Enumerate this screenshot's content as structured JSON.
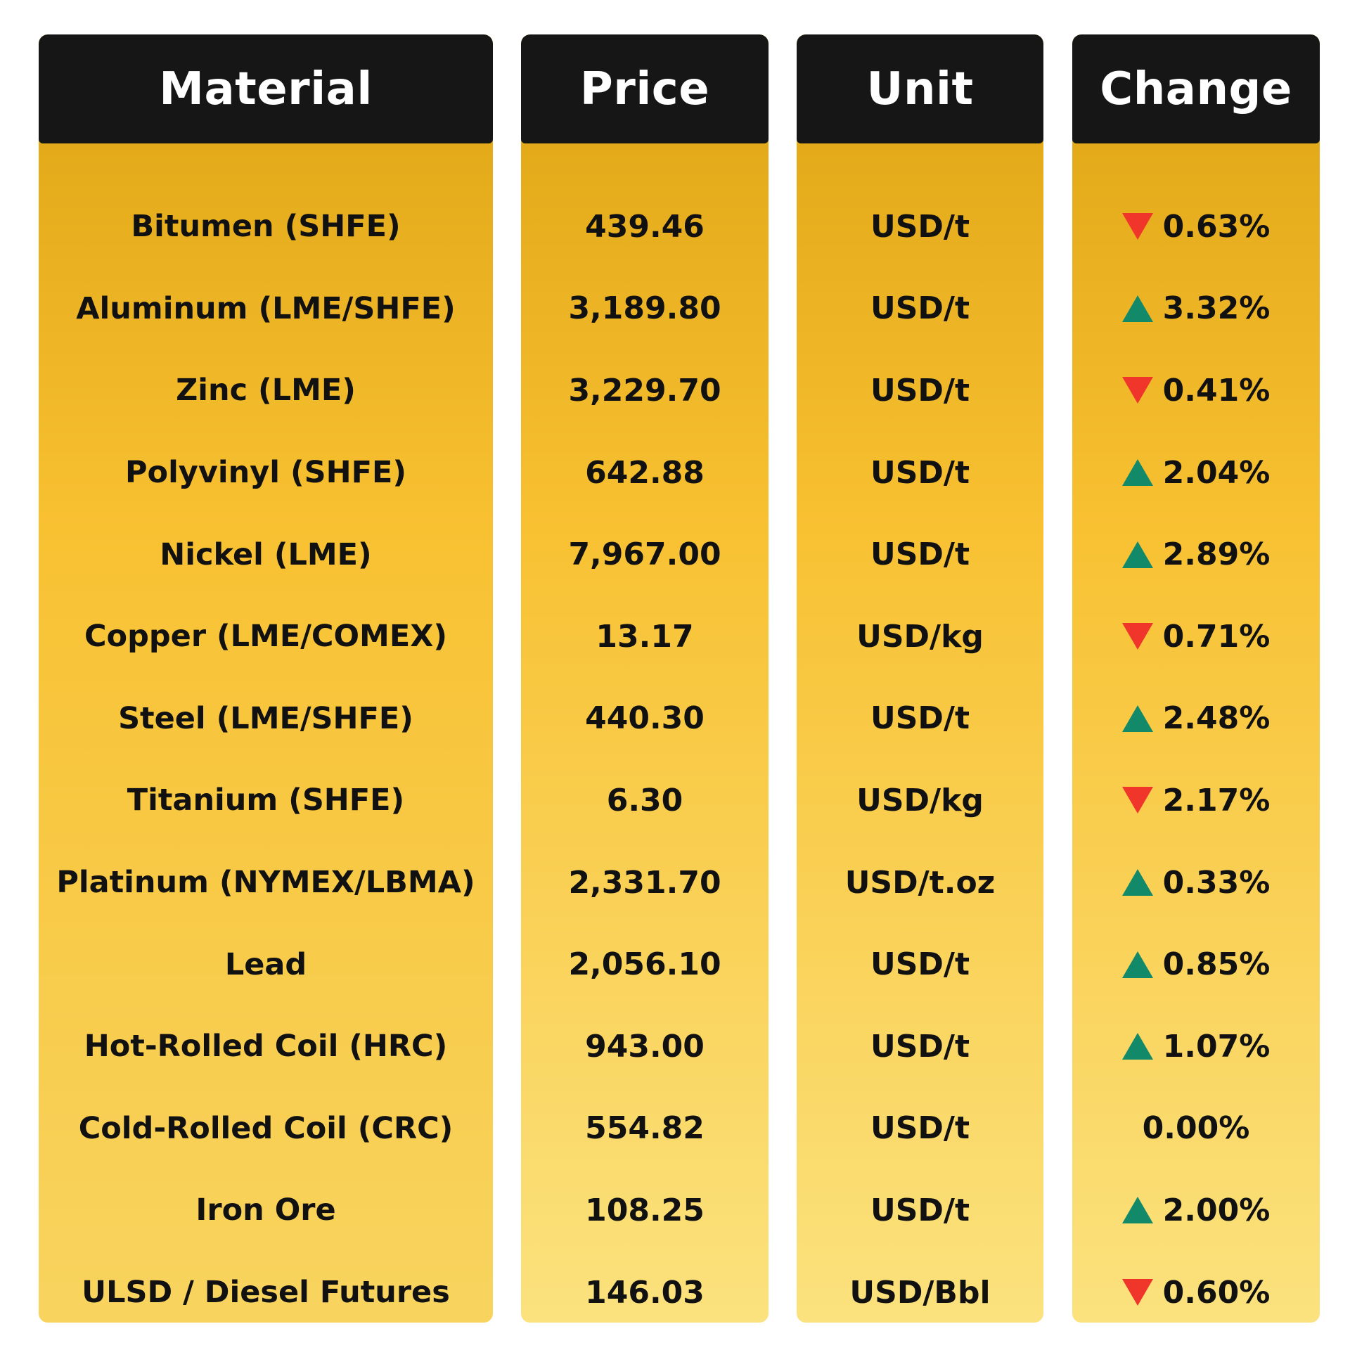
{
  "colors": {
    "header_bg": "#161616",
    "up": "#128a6a",
    "down": "#f0352b",
    "gradient_top": "#e3aa1a",
    "gradient_bottom": "#fbe27e"
  },
  "headers": {
    "material": "Material",
    "price": "Price",
    "unit": "Unit",
    "change": "Change"
  },
  "rows": [
    {
      "material": "Bitumen (SHFE)",
      "price": "439.46",
      "unit": "USD/t",
      "change": "0.63%",
      "direction": "down"
    },
    {
      "material": "Aluminum (LME/SHFE)",
      "price": "3,189.80",
      "unit": "USD/t",
      "change": "3.32%",
      "direction": "up"
    },
    {
      "material": "Zinc (LME)",
      "price": "3,229.70",
      "unit": "USD/t",
      "change": "0.41%",
      "direction": "down"
    },
    {
      "material": "Polyvinyl (SHFE)",
      "price": "642.88",
      "unit": "USD/t",
      "change": "2.04%",
      "direction": "up"
    },
    {
      "material": "Nickel (LME)",
      "price": "7,967.00",
      "unit": "USD/t",
      "change": "2.89%",
      "direction": "up"
    },
    {
      "material": "Copper (LME/COMEX)",
      "price": "13.17",
      "unit": "USD/kg",
      "change": "0.71%",
      "direction": "down"
    },
    {
      "material": "Steel (LME/SHFE)",
      "price": "440.30",
      "unit": "USD/t",
      "change": "2.48%",
      "direction": "up"
    },
    {
      "material": "Titanium (SHFE)",
      "price": "6.30",
      "unit": "USD/kg",
      "change": "2.17%",
      "direction": "down"
    },
    {
      "material": "Platinum (NYMEX/LBMA)",
      "price": "2,331.70",
      "unit": "USD/t.oz",
      "change": "0.33%",
      "direction": "up"
    },
    {
      "material": "Lead",
      "price": "2,056.10",
      "unit": "USD/t",
      "change": "0.85%",
      "direction": "up"
    },
    {
      "material": "Hot-Rolled Coil (HRC)",
      "price": "943.00",
      "unit": "USD/t",
      "change": "1.07%",
      "direction": "up"
    },
    {
      "material": "Cold-Rolled Coil (CRC)",
      "price": "554.82",
      "unit": "USD/t",
      "change": "0.00%",
      "direction": "none"
    },
    {
      "material": "Iron Ore",
      "price": "108.25",
      "unit": "USD/t",
      "change": "2.00%",
      "direction": "up"
    },
    {
      "material": "ULSD / Diesel Futures",
      "price": "146.03",
      "unit": "USD/Bbl",
      "change": "0.60%",
      "direction": "down"
    }
  ]
}
